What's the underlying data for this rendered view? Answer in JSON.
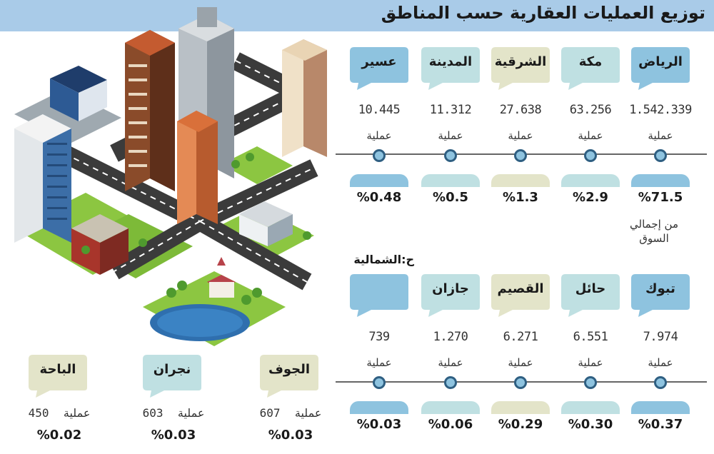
{
  "title": "توزيع العمليات العقارية حسب المناطق",
  "unit_label": "عملية",
  "market_note": [
    "من إجمالي",
    "السوق"
  ],
  "section_label": "ح:الشمالية",
  "colors": {
    "blue": "#8ec3df",
    "teal": "#bfe0e2",
    "beige": "#e3e4c9",
    "header": "#a9cbe8"
  },
  "row1": [
    {
      "name": "الرياض",
      "count": "1.542.339",
      "percent": "%71.5",
      "color": "blue"
    },
    {
      "name": "مكة",
      "count": "63.256",
      "percent": "%2.9",
      "color": "teal"
    },
    {
      "name": "الشرقية",
      "count": "27.638",
      "percent": "%1.3",
      "color": "beige"
    },
    {
      "name": "المدينة",
      "count": "11.312",
      "percent": "%0.5",
      "color": "teal"
    },
    {
      "name": "عسير",
      "count": "10.445",
      "percent": "%0.48",
      "color": "blue"
    }
  ],
  "row2": [
    {
      "name": "تبوك",
      "count": "7.974",
      "percent": "%0.37",
      "color": "blue"
    },
    {
      "name": "حائل",
      "count": "6.551",
      "percent": "%0.30",
      "color": "teal"
    },
    {
      "name": "القصيم",
      "count": "6.271",
      "percent": "%0.29",
      "color": "beige"
    },
    {
      "name": "جازان",
      "count": "1.270",
      "percent": "%0.06",
      "color": "teal"
    },
    {
      "name": "",
      "count": "739",
      "percent": "%0.03",
      "color": "blue"
    }
  ],
  "row3": [
    {
      "name": "الجوف",
      "count": "607",
      "percent": "%0.03",
      "color": "beige"
    },
    {
      "name": "نجران",
      "count": "603",
      "percent": "%0.03",
      "color": "teal"
    },
    {
      "name": "الباحة",
      "count": "450",
      "percent": "%0.02",
      "color": "beige"
    }
  ]
}
